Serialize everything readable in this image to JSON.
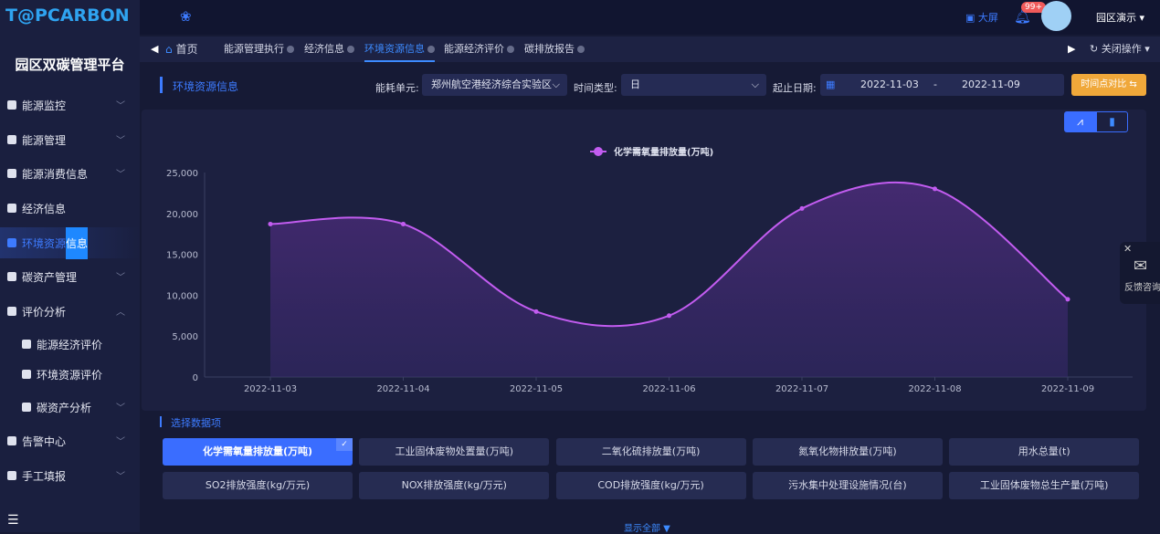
{
  "app": {
    "logo": "T@PCARBON",
    "platform": "园区双碳管理平台"
  },
  "header": {
    "bigscreen": "大屏",
    "badge": "99+",
    "user": "园区演示"
  },
  "sidebar": {
    "items": [
      {
        "label": "能源监控",
        "chev": "﹀"
      },
      {
        "label": "能源管理",
        "chev": "﹀"
      },
      {
        "label": "能源消费信息",
        "chev": "﹀"
      },
      {
        "label": "经济信息"
      },
      {
        "label_a": "环境资源",
        "label_b": "信息",
        "active": true
      },
      {
        "label": "碳资产管理",
        "chev": "﹀"
      },
      {
        "label": "评价分析",
        "chev": "︿"
      },
      {
        "label": "能源经济评价",
        "sub": true
      },
      {
        "label": "环境资源评价",
        "sub": true
      },
      {
        "label": "碳资产分析",
        "sub": true,
        "chev": "﹀"
      },
      {
        "label": "告警中心",
        "chev": "﹀"
      },
      {
        "label": "手工填报",
        "chev": "﹀"
      }
    ]
  },
  "tabs": {
    "home": "首页",
    "items": [
      "能源管理执行",
      "经济信息",
      "环境资源信息",
      "能源经济评价",
      "碳排放报告"
    ],
    "active": 2,
    "close_ops": "关闭操作"
  },
  "filters": {
    "title": "环境资源信息",
    "unit_label": "能耗单元:",
    "unit_value": "郑州航空港经济综合实验区",
    "type_label": "时间类型:",
    "type_value": "日",
    "date_label": "起止日期:",
    "start": "2022-11-03",
    "sep": "-",
    "end": "2022-11-09",
    "compare": "时间点对比 ⇆"
  },
  "feedback": {
    "label": "反馈咨询"
  },
  "chart_data": {
    "type": "area",
    "legend": "化学需氧量排放量(万吨)",
    "legend_position": "top-center",
    "color": "#c25cf0",
    "categories": [
      "2022-11-03",
      "2022-11-04",
      "2022-11-05",
      "2022-11-06",
      "2022-11-07",
      "2022-11-08",
      "2022-11-09"
    ],
    "values": [
      18700,
      18700,
      8000,
      7500,
      20600,
      23000,
      9500
    ],
    "ylim": [
      0,
      25000
    ],
    "yticks": [
      "0",
      "5,000",
      "10,000",
      "15,000",
      "20,000",
      "25,000"
    ],
    "grid": false
  },
  "selector": {
    "title": "选择数据项",
    "show_all": "显示全部",
    "items": [
      "化学需氧量排放量(万吨)",
      "工业固体废物处置量(万吨)",
      "二氧化硫排放量(万吨)",
      "氮氧化物排放量(万吨)",
      "用水总量(t)",
      "SO2排放强度(kg/万元)",
      "NOX排放强度(kg/万元)",
      "COD排放强度(kg/万元)",
      "污水集中处理设施情况(台)",
      "工业固体废物总生产量(万吨)"
    ],
    "selected": 0
  }
}
